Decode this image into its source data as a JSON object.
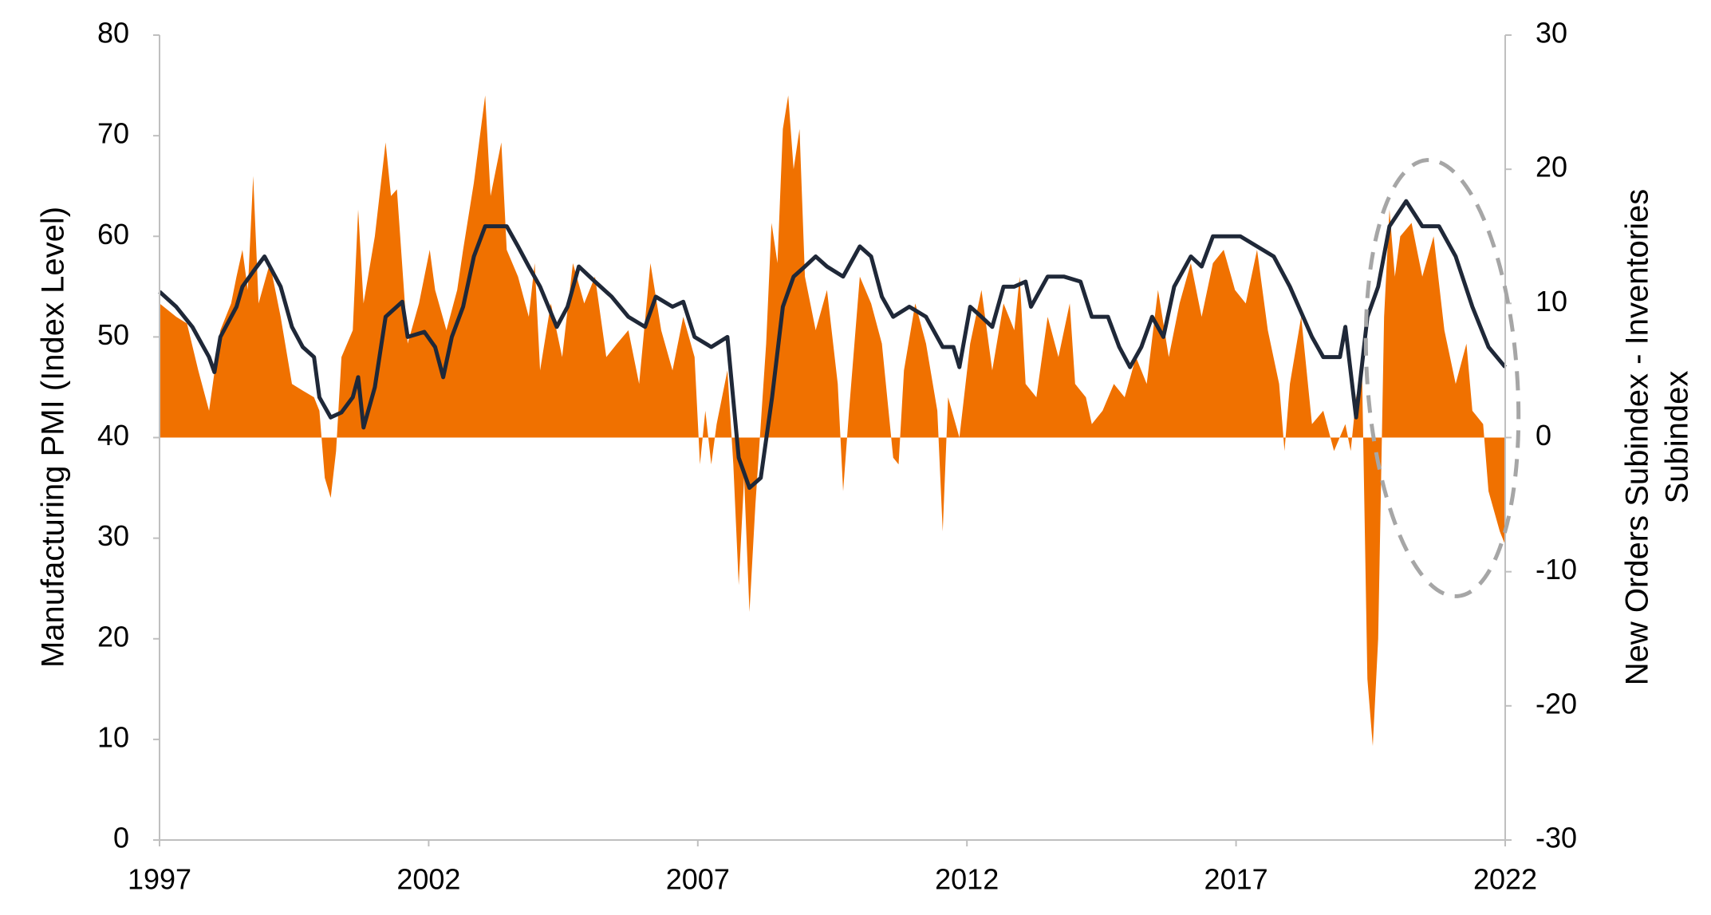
{
  "chart_data": {
    "type": "combo",
    "ylabel": "Manufacturing PMI (Index Level)",
    "y2label": [
      "New Orders Subindex - Inventories",
      "Subindex"
    ],
    "y2label_color": "#f07100",
    "xlim": [
      1997,
      2022
    ],
    "xticks": [
      1997,
      2002,
      2007,
      2012,
      2017,
      2022
    ],
    "ylim": [
      0,
      80
    ],
    "yticks": [
      0,
      10,
      20,
      30,
      40,
      50,
      60,
      70,
      80
    ],
    "y2lim": [
      -30,
      30
    ],
    "y2ticks": [
      -30,
      -20,
      -10,
      0,
      10,
      20,
      30
    ],
    "grid": false,
    "series": [
      {
        "type": "area",
        "axis": "y2",
        "color": "#f07100",
        "x": [
          1997.0,
          1997.31,
          1997.51,
          1997.72,
          1997.92,
          1998.13,
          1998.33,
          1998.43,
          1998.54,
          1998.64,
          1998.74,
          1998.84,
          1999.05,
          1999.25,
          1999.46,
          1999.66,
          1999.87,
          1999.97,
          2000.07,
          2000.18,
          2000.28,
          2000.38,
          2000.59,
          2000.69,
          2000.79,
          2001.0,
          2001.2,
          2001.3,
          2001.41,
          2001.61,
          2001.82,
          2002.02,
          2002.12,
          2002.33,
          2002.53,
          2002.64,
          2002.84,
          2003.05,
          2003.15,
          2003.35,
          2003.45,
          2003.66,
          2003.86,
          2003.97,
          2004.07,
          2004.27,
          2004.48,
          2004.68,
          2004.89,
          2005.09,
          2005.3,
          2005.5,
          2005.71,
          2005.91,
          2006.12,
          2006.32,
          2006.53,
          2006.73,
          2006.94,
          2007.04,
          2007.14,
          2007.25,
          2007.35,
          2007.55,
          2007.66,
          2007.76,
          2007.86,
          2007.96,
          2008.07,
          2008.27,
          2008.37,
          2008.48,
          2008.58,
          2008.68,
          2008.78,
          2008.89,
          2008.99,
          2009.19,
          2009.4,
          2009.6,
          2009.7,
          2009.81,
          2010.01,
          2010.22,
          2010.42,
          2010.63,
          2010.73,
          2010.83,
          2011.04,
          2011.24,
          2011.45,
          2011.55,
          2011.65,
          2011.86,
          2012.06,
          2012.27,
          2012.47,
          2012.68,
          2012.88,
          2012.98,
          2013.09,
          2013.29,
          2013.5,
          2013.7,
          2013.91,
          2014.01,
          2014.21,
          2014.32,
          2014.52,
          2014.73,
          2014.93,
          2015.14,
          2015.34,
          2015.55,
          2015.75,
          2015.95,
          2016.16,
          2016.36,
          2016.57,
          2016.77,
          2016.98,
          2017.18,
          2017.39,
          2017.59,
          2017.8,
          2017.9,
          2018.0,
          2018.21,
          2018.41,
          2018.62,
          2018.82,
          2019.03,
          2019.13,
          2019.23,
          2019.34,
          2019.44,
          2019.54,
          2019.64,
          2019.75,
          2019.85,
          2019.95,
          2020.05,
          2020.26,
          2020.46,
          2020.67,
          2020.87,
          2021.08,
          2021.28,
          2021.39,
          2021.59,
          2021.69,
          2021.9,
          2022.0
        ],
        "values": [
          10,
          9,
          8.5,
          5,
          2,
          8,
          10,
          12,
          14,
          11,
          19.5,
          10,
          13,
          9,
          4,
          3.5,
          3,
          2,
          -3,
          -4.5,
          -1,
          6,
          8,
          17,
          10,
          15,
          22,
          18,
          18.5,
          7,
          10,
          14,
          11,
          8,
          11,
          14,
          19,
          25.5,
          18,
          22,
          14,
          12,
          9,
          13,
          5,
          10,
          6,
          13,
          10,
          12,
          6,
          7,
          8,
          4,
          13,
          8,
          5,
          9,
          6,
          -2,
          2,
          -2,
          1,
          5,
          -2,
          -11,
          -3,
          -13,
          -5,
          7,
          16,
          13,
          23,
          25.5,
          20,
          23,
          12,
          8,
          11,
          4,
          -4,
          2,
          12,
          10,
          7,
          -1.5,
          -2,
          5,
          10,
          7,
          2,
          -7,
          3,
          0,
          7,
          11,
          5,
          10,
          8,
          12,
          4,
          3,
          9,
          6,
          10,
          4,
          3,
          1,
          2,
          4,
          3,
          6,
          4,
          11,
          6,
          10,
          13,
          9,
          13,
          14,
          11,
          10,
          14,
          8,
          4,
          -1,
          4,
          9,
          1,
          2,
          -1,
          1,
          -1,
          3,
          5,
          -18,
          -23,
          -15,
          9,
          17,
          12,
          15,
          16,
          12,
          15,
          8,
          4,
          7,
          2,
          1,
          -4,
          -7,
          -8
        ]
      },
      {
        "type": "line",
        "axis": "y",
        "color": "#1f2838",
        "x": [
          1997.0,
          1997.31,
          1997.61,
          1997.92,
          1998.02,
          1998.13,
          1998.43,
          1998.54,
          1998.74,
          1998.95,
          1999.25,
          1999.46,
          1999.66,
          1999.87,
          1999.97,
          2000.18,
          2000.38,
          2000.59,
          2000.69,
          2000.79,
          2001.0,
          2001.2,
          2001.51,
          2001.61,
          2001.92,
          2002.12,
          2002.27,
          2002.43,
          2002.64,
          2002.84,
          2003.05,
          2003.25,
          2003.45,
          2003.66,
          2003.86,
          2004.07,
          2004.38,
          2004.58,
          2004.79,
          2005.09,
          2005.4,
          2005.71,
          2006.02,
          2006.22,
          2006.53,
          2006.73,
          2006.94,
          2007.25,
          2007.55,
          2007.76,
          2007.96,
          2008.17,
          2008.38,
          2008.58,
          2008.78,
          2008.99,
          2009.19,
          2009.4,
          2009.7,
          2010.01,
          2010.22,
          2010.42,
          2010.63,
          2010.93,
          2011.24,
          2011.55,
          2011.75,
          2011.86,
          2012.06,
          2012.27,
          2012.47,
          2012.68,
          2012.88,
          2013.09,
          2013.19,
          2013.5,
          2013.8,
          2014.11,
          2014.32,
          2014.62,
          2014.83,
          2015.03,
          2015.24,
          2015.44,
          2015.65,
          2015.85,
          2016.16,
          2016.36,
          2016.57,
          2016.77,
          2017.08,
          2017.39,
          2017.7,
          2018.0,
          2018.41,
          2018.62,
          2018.93,
          2019.03,
          2019.23,
          2019.44,
          2019.64,
          2019.85,
          2020.16,
          2020.46,
          2020.77,
          2021.08,
          2021.39,
          2021.69,
          2022.0
        ],
        "values": [
          54.5,
          53,
          51,
          48,
          46.5,
          50,
          53,
          55,
          56.5,
          58,
          55,
          51,
          49,
          48,
          44,
          42,
          42.5,
          44,
          46,
          41,
          45,
          52,
          53.5,
          50,
          50.5,
          49,
          46,
          50,
          53,
          58,
          61,
          61,
          61,
          59,
          57,
          55,
          51,
          53,
          57,
          55.5,
          54,
          52,
          51,
          54,
          53,
          53.5,
          50,
          49,
          50,
          38,
          35,
          36,
          44,
          53,
          56,
          57,
          58,
          57,
          56,
          59,
          58,
          54,
          52,
          53,
          52,
          49,
          49,
          47,
          53,
          52,
          51,
          55,
          55,
          55.5,
          53,
          56,
          56,
          55.5,
          52,
          52,
          49,
          47,
          49,
          52,
          50,
          55,
          58,
          57,
          60,
          60,
          60,
          59,
          58,
          55,
          50,
          48,
          48,
          51,
          42,
          52,
          55,
          61,
          63.5,
          61,
          61,
          58,
          53,
          49,
          47
        ]
      }
    ]
  }
}
